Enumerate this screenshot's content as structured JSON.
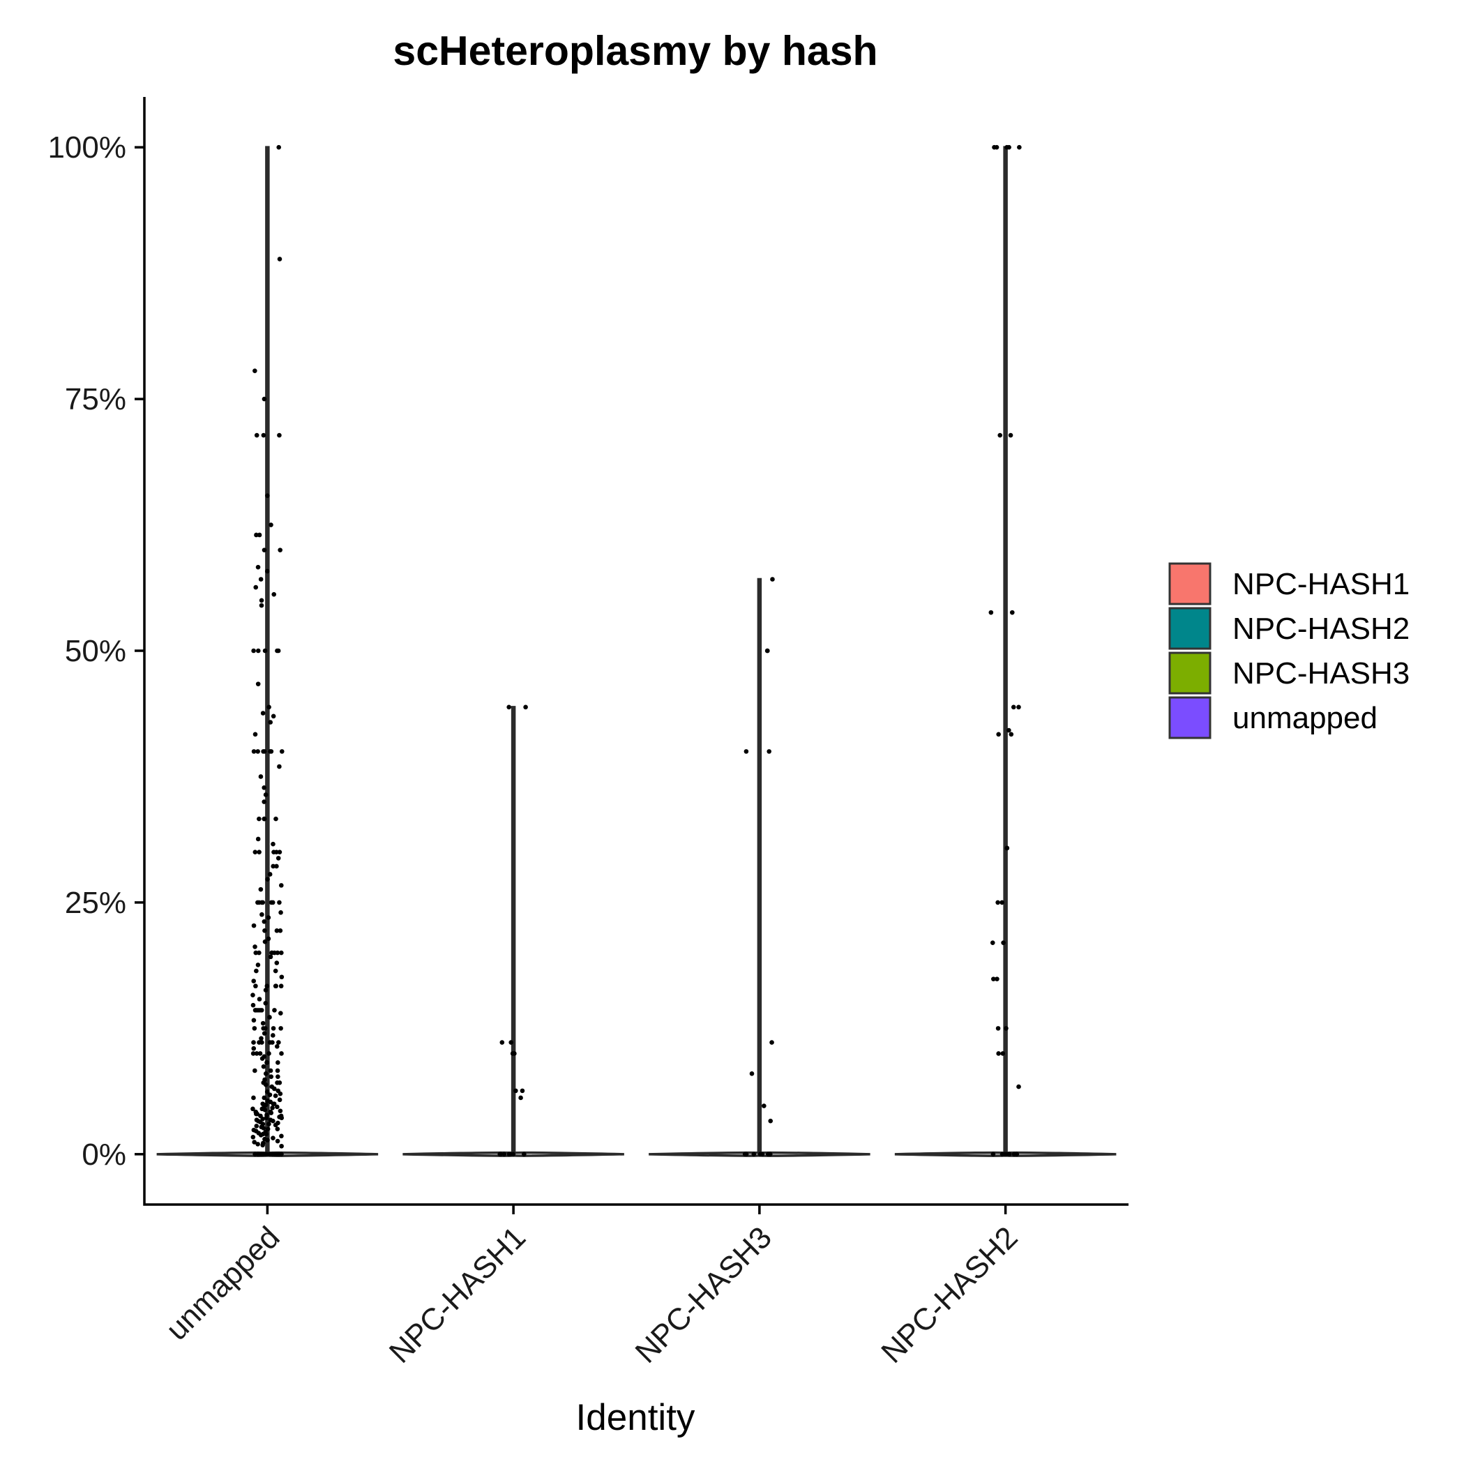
{
  "chart_data": {
    "type": "violin",
    "title": "scHeteroplasmy by hash",
    "xlabel": "Identity",
    "ylabel": "",
    "categories": [
      "unmapped",
      "NPC-HASH1",
      "NPC-HASH3",
      "NPC-HASH2"
    ],
    "category_fill_colors": {
      "unmapped": "#7b4dff",
      "NPC-HASH1": "#f8766d",
      "NPC-HASH3": "#7cae00",
      "NPC-HASH2": "#00868b"
    },
    "ylim": [
      -0.05,
      1.05
    ],
    "yticks": [
      0,
      0.25,
      0.5,
      0.75,
      1.0
    ],
    "ytick_labels": [
      "0%",
      "25%",
      "50%",
      "75%",
      "100%"
    ],
    "grid": false,
    "legend": {
      "position": "right",
      "entries": [
        {
          "label": "NPC-HASH1",
          "color": "#f8766d"
        },
        {
          "label": "NPC-HASH2",
          "color": "#00868b"
        },
        {
          "label": "NPC-HASH3",
          "color": "#7cae00"
        },
        {
          "label": "unmapped",
          "color": "#7b4dff"
        }
      ]
    },
    "series": [
      {
        "category": "unmapped",
        "max": 1.0,
        "points": [
          1.0,
          0.889,
          0.778,
          0.75,
          0.714,
          0.714,
          0.714,
          0.654,
          0.625,
          0.615,
          0.615,
          0.6,
          0.6,
          0.583,
          0.579,
          0.571,
          0.563,
          0.556,
          0.55,
          0.545,
          0.5,
          0.5,
          0.5,
          0.5,
          0.5,
          0.467,
          0.444,
          0.438,
          0.435,
          0.429,
          0.417,
          0.4,
          0.4,
          0.4,
          0.4,
          0.4,
          0.4,
          0.4,
          0.385,
          0.375,
          0.364,
          0.357,
          0.35,
          0.333,
          0.333,
          0.333,
          0.333,
          0.313,
          0.308,
          0.3,
          0.3,
          0.3,
          0.3,
          0.3,
          0.294,
          0.286,
          0.286,
          0.278,
          0.273,
          0.267,
          0.263,
          0.25,
          0.25,
          0.25,
          0.25,
          0.25,
          0.25,
          0.25,
          0.24,
          0.238,
          0.235,
          0.231,
          0.227,
          0.222,
          0.222,
          0.222,
          0.214,
          0.211,
          0.206,
          0.2,
          0.2,
          0.2,
          0.2,
          0.2,
          0.2,
          0.2,
          0.196,
          0.19,
          0.188,
          0.182,
          0.182,
          0.176,
          0.172,
          0.167,
          0.167,
          0.167,
          0.167,
          0.167,
          0.163,
          0.158,
          0.154,
          0.15,
          0.148,
          0.143,
          0.143,
          0.143,
          0.143,
          0.143,
          0.143,
          0.14,
          0.136,
          0.133,
          0.13,
          0.125,
          0.125,
          0.125,
          0.125,
          0.125,
          0.12,
          0.118,
          0.115,
          0.111,
          0.111,
          0.111,
          0.111,
          0.111,
          0.111,
          0.107,
          0.105,
          0.1,
          0.1,
          0.1,
          0.1,
          0.1,
          0.097,
          0.095,
          0.091,
          0.091,
          0.091,
          0.087,
          0.083,
          0.083,
          0.083,
          0.08,
          0.077,
          0.077,
          0.074,
          0.071,
          0.071,
          0.071,
          0.069,
          0.067,
          0.065,
          0.063,
          0.062,
          0.06,
          0.059,
          0.058,
          0.056,
          0.056,
          0.054,
          0.053,
          0.052,
          0.05,
          0.05,
          0.05,
          0.049,
          0.048,
          0.047,
          0.046,
          0.045,
          0.045,
          0.044,
          0.043,
          0.042,
          0.042,
          0.041,
          0.04,
          0.04,
          0.039,
          0.038,
          0.038,
          0.037,
          0.036,
          0.036,
          0.035,
          0.034,
          0.034,
          0.033,
          0.033,
          0.032,
          0.031,
          0.03,
          0.03,
          0.029,
          0.028,
          0.027,
          0.026,
          0.025,
          0.025,
          0.024,
          0.023,
          0.022,
          0.021,
          0.02,
          0.02,
          0.019,
          0.018,
          0.017,
          0.016,
          0.015,
          0.014,
          0.013,
          0.012,
          0.011,
          0.01,
          0.009,
          0.008,
          0.0,
          0.0,
          0.0,
          0.0,
          0.0,
          0.0,
          0.0,
          0.0,
          0.0,
          0.0,
          0.0,
          0.0,
          0.0,
          0.0,
          0.0,
          0.0,
          0.0,
          0.0
        ]
      },
      {
        "category": "NPC-HASH1",
        "max": 0.444,
        "points": [
          0.444,
          0.444,
          0.111,
          0.111,
          0.1,
          0.1,
          0.063,
          0.063,
          0.056,
          0.0,
          0.0,
          0.0,
          0.0,
          0.0,
          0.0,
          0.0,
          0.0
        ]
      },
      {
        "category": "NPC-HASH3",
        "max": 0.571,
        "points": [
          0.571,
          0.5,
          0.5,
          0.4,
          0.4,
          0.111,
          0.08,
          0.048,
          0.033,
          0.0,
          0.0,
          0.0,
          0.0,
          0.0,
          0.0,
          0.0
        ]
      },
      {
        "category": "NPC-HASH2",
        "max": 1.0,
        "points": [
          1.0,
          1.0,
          1.0,
          1.0,
          1.0,
          0.714,
          0.714,
          0.538,
          0.538,
          0.444,
          0.444,
          0.421,
          0.417,
          0.417,
          0.304,
          0.304,
          0.25,
          0.25,
          0.21,
          0.21,
          0.174,
          0.174,
          0.125,
          0.125,
          0.1,
          0.1,
          0.067,
          0.0,
          0.0,
          0.0,
          0.0,
          0.0,
          0.0,
          0.0,
          0.0,
          0.0
        ]
      }
    ]
  }
}
